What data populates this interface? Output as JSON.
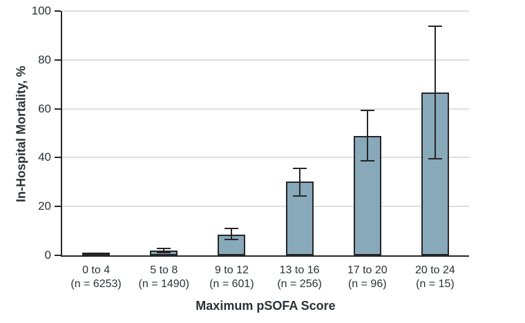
{
  "figure_type": "static-bar-chart-figure",
  "chart_data": {
    "type": "bar",
    "title": "",
    "xlabel": "Maximum pSOFA Score",
    "ylabel": "In-Hospital Mortality, %",
    "categories": [
      "0 to 4",
      "5 to 8",
      "9 to 12",
      "13 to 16",
      "17 to 20",
      "20 to 24"
    ],
    "category_sublabels": [
      "(n = 6253)",
      "(n = 1490)",
      "(n = 601)",
      "(n = 256)",
      "(n = 96)",
      "(n = 15)"
    ],
    "values": [
      0.3,
      1.9,
      8.5,
      30.1,
      48.9,
      66.7
    ],
    "error_bars": {
      "low": [
        0.2,
        1.1,
        6.4,
        24.4,
        38.8,
        39.5
      ],
      "high": [
        0.5,
        2.8,
        10.9,
        35.6,
        59.2,
        93.8
      ]
    },
    "ylim": [
      0,
      100
    ],
    "yticks": [
      0,
      20,
      40,
      60,
      80,
      100
    ],
    "grid": "horizontal-only",
    "legend": "none",
    "bar_color": "#87a9ba",
    "bar_border_color": "#262626",
    "grid_color": "#dedede",
    "axis_color": "#262626",
    "text_color": "#2b3137"
  }
}
